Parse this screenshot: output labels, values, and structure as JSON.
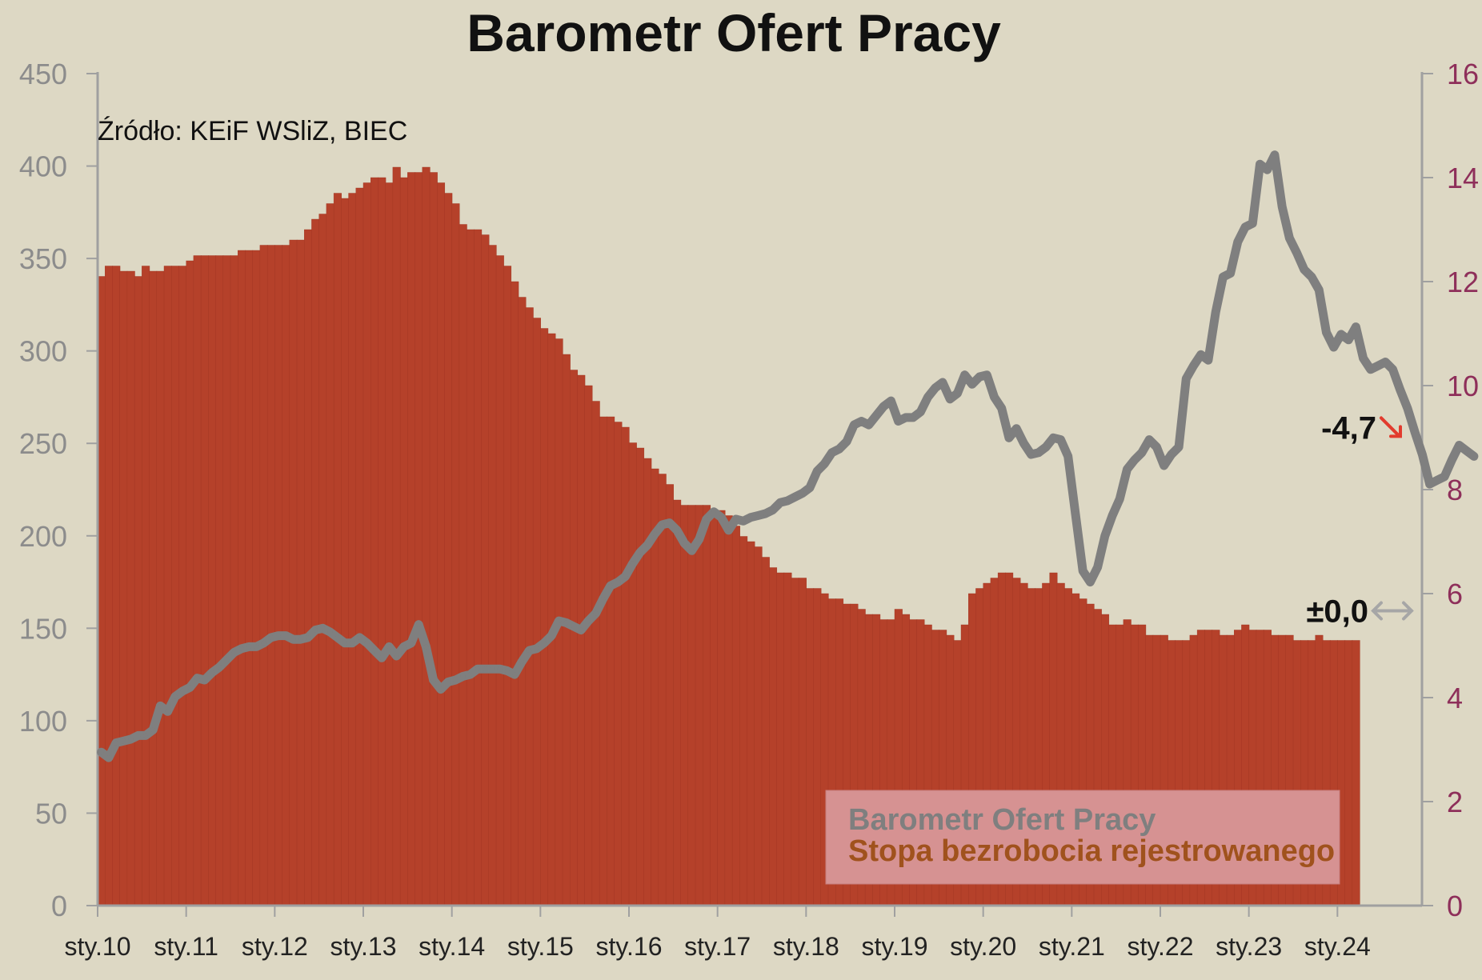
{
  "chart_data": {
    "type": "bar+line",
    "title": "Barometr Ofert Pracy",
    "source": "Źródło: KEiF WSliZ, BIEC",
    "x_labels": [
      "sty.10",
      "sty.11",
      "sty.12",
      "sty.13",
      "sty.14",
      "sty.15",
      "sty.16",
      "sty.17",
      "sty.18",
      "sty.19",
      "sty.20",
      "sty.21",
      "sty.22",
      "sty.23",
      "sty.24"
    ],
    "left_axis": {
      "ticks": [
        0,
        50,
        100,
        150,
        200,
        250,
        300,
        350,
        400,
        450
      ],
      "ylim": [
        0,
        450
      ]
    },
    "right_axis": {
      "ticks": [
        0,
        2,
        4,
        6,
        8,
        10,
        12,
        14,
        16
      ],
      "ylim": [
        0,
        16
      ]
    },
    "series": [
      {
        "name": "Barometr Ofert Pracy",
        "axis": "left",
        "type": "line",
        "color": "#7f7f7f",
        "values": [
          83,
          80,
          88,
          89,
          90,
          92,
          92,
          95,
          108,
          105,
          113,
          116,
          118,
          123,
          122,
          126,
          129,
          133,
          137,
          139,
          140,
          140,
          142,
          145,
          146,
          146,
          144,
          144,
          145,
          149,
          150,
          148,
          145,
          142,
          142,
          145,
          142,
          138,
          134,
          140,
          135,
          140,
          142,
          152,
          140,
          122,
          117,
          121,
          122,
          124,
          125,
          128,
          128,
          128,
          128,
          127,
          125,
          132,
          138,
          139,
          142,
          146,
          154,
          153,
          151,
          149,
          154,
          158,
          166,
          173,
          175,
          178,
          185,
          191,
          195,
          201,
          206,
          207,
          203,
          196,
          192,
          198,
          209,
          213,
          210,
          203,
          209,
          208,
          210,
          211,
          212,
          214,
          218,
          219,
          221,
          223,
          226,
          235,
          239,
          245,
          247,
          251,
          260,
          262,
          260,
          265,
          270,
          273,
          262,
          264,
          264,
          267,
          275,
          280,
          283,
          274,
          277,
          287,
          282,
          286,
          287,
          275,
          269,
          253,
          258,
          250,
          244,
          245,
          248,
          253,
          252,
          243,
          212,
          181,
          175,
          183,
          200,
          211,
          220,
          236,
          241,
          245,
          252,
          248,
          238,
          244,
          248,
          285,
          292,
          298,
          295,
          321,
          340,
          342,
          359,
          367,
          369,
          401,
          398,
          406,
          378,
          361,
          353,
          344,
          340,
          333,
          310,
          302,
          309,
          306,
          313,
          296,
          290,
          292,
          294,
          290,
          279,
          269,
          256,
          244,
          228,
          230,
          232,
          241,
          249,
          246,
          243
        ]
      },
      {
        "name": "Stopa bezrobocia rejestrowanego",
        "axis": "right",
        "type": "bar",
        "color": "#b5412a",
        "values": [
          12.1,
          12.3,
          12.3,
          12.2,
          12.2,
          12.1,
          12.3,
          12.2,
          12.2,
          12.3,
          12.3,
          12.3,
          12.4,
          12.5,
          12.5,
          12.5,
          12.5,
          12.5,
          12.5,
          12.6,
          12.6,
          12.6,
          12.7,
          12.7,
          12.7,
          12.7,
          12.8,
          12.8,
          13.0,
          13.2,
          13.3,
          13.5,
          13.7,
          13.6,
          13.7,
          13.8,
          13.9,
          14.0,
          14.0,
          13.9,
          14.2,
          14.0,
          14.1,
          14.1,
          14.2,
          14.1,
          13.9,
          13.7,
          13.5,
          13.1,
          13.0,
          13.0,
          12.9,
          12.7,
          12.5,
          12.3,
          12.0,
          11.7,
          11.5,
          11.3,
          11.1,
          11.0,
          10.9,
          10.6,
          10.3,
          10.2,
          10.0,
          9.7,
          9.4,
          9.4,
          9.3,
          9.2,
          8.9,
          8.8,
          8.6,
          8.4,
          8.3,
          8.1,
          7.8,
          7.7,
          7.7,
          7.7,
          7.7,
          7.6,
          7.6,
          7.5,
          7.3,
          7.1,
          7.0,
          6.9,
          6.7,
          6.5,
          6.4,
          6.4,
          6.3,
          6.3,
          6.1,
          6.1,
          6.0,
          5.9,
          5.9,
          5.8,
          5.8,
          5.7,
          5.6,
          5.6,
          5.5,
          5.5,
          5.7,
          5.6,
          5.5,
          5.5,
          5.4,
          5.3,
          5.3,
          5.2,
          5.1,
          5.4,
          6.0,
          6.1,
          6.2,
          6.3,
          6.4,
          6.4,
          6.3,
          6.2,
          6.1,
          6.1,
          6.2,
          6.4,
          6.2,
          6.1,
          6.0,
          5.9,
          5.8,
          5.7,
          5.6,
          5.4,
          5.4,
          5.5,
          5.4,
          5.4,
          5.2,
          5.2,
          5.2,
          5.1,
          5.1,
          5.1,
          5.2,
          5.3,
          5.3,
          5.3,
          5.2,
          5.2,
          5.3,
          5.4,
          5.3,
          5.3,
          5.3,
          5.2,
          5.2,
          5.2,
          5.1,
          5.1,
          5.1,
          5.2,
          5.1,
          5.1,
          5.1,
          5.1,
          5.1
        ]
      }
    ],
    "annotations": [
      {
        "text": "-4,7",
        "arrow": "down-right",
        "arrow_color": "#e23b2e"
      },
      {
        "text": "±0,0",
        "arrow": "left-right",
        "arrow_color": "#a6a6a6"
      }
    ],
    "legend": {
      "placement": "bottom-right",
      "background": "#d69292",
      "items": [
        {
          "label": "Barometr Ofert Pracy",
          "color": "#7f7f7f"
        },
        {
          "label": "Stopa bezrobocia rejestrowanego",
          "color": "#a0521d"
        }
      ]
    },
    "grid": false
  }
}
